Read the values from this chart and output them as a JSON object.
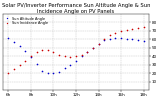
{
  "title": "Solar PV/Inverter Performance Sun Altitude Angle & Sun Incidence Angle on PV Panels",
  "background_color": "#ffffff",
  "grid_color": "#aaaaaa",
  "times": [
    6.0,
    6.5,
    7.0,
    7.5,
    8.0,
    8.5,
    9.0,
    9.5,
    10.0,
    10.5,
    11.0,
    11.5,
    12.0,
    12.5,
    13.0,
    13.5,
    14.0,
    14.5,
    15.0,
    15.5,
    16.0,
    16.5,
    17.0,
    17.5,
    18.0
  ],
  "sun_altitude": [
    62,
    57,
    52,
    46,
    39,
    31,
    23,
    20,
    20,
    22,
    26,
    30,
    35,
    40,
    45,
    50,
    55,
    59,
    61,
    62,
    62,
    61,
    60,
    59,
    58
  ],
  "sun_incidence": [
    20,
    25,
    30,
    35,
    40,
    45,
    48,
    47,
    45,
    42,
    40,
    39,
    40,
    42,
    45,
    50,
    55,
    60,
    65,
    68,
    70,
    71,
    72,
    73,
    74
  ],
  "altitude_color": "#0000cc",
  "incidence_color": "#cc0000",
  "xlim": [
    5.5,
    18.5
  ],
  "ylim": [
    0,
    90
  ],
  "yticks": [
    10,
    20,
    30,
    40,
    50,
    60,
    70,
    80
  ],
  "xtick_positions": [
    6,
    8,
    10,
    12,
    14,
    16,
    18
  ],
  "xtick_labels": [
    "6h",
    "8h",
    "10h",
    "12h",
    "14h",
    "16h",
    "18h"
  ],
  "title_fontsize": 3.8,
  "tick_fontsize": 3.0,
  "marker_size": 1.2,
  "legend_altitude": "Sun Altitude Angle",
  "legend_incidence": "Sun Incidence Angle"
}
